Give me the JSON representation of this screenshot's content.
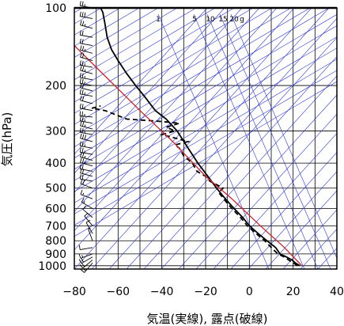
{
  "chart_data": {
    "type": "line",
    "title": "",
    "xlabel": "気温(実線), 露点(破線)",
    "ylabel": "気圧(hPa)",
    "x_unit": "°C",
    "y_unit": "hPa",
    "xlim": [
      -80,
      40
    ],
    "ylim": [
      1030,
      100
    ],
    "y_scale": "log",
    "x_ticks": [
      -80,
      -60,
      -40,
      -20,
      0,
      20,
      40
    ],
    "x_tick_labels": [
      "−80",
      "−60",
      "−40",
      "−20",
      "0",
      "20",
      "40"
    ],
    "y_ticks": [
      100,
      200,
      300,
      400,
      500,
      600,
      700,
      800,
      900,
      1000
    ],
    "y_tick_labels": [
      "100",
      "200",
      "300",
      "400",
      "500",
      "600",
      "700",
      "800",
      "900",
      "1000"
    ],
    "grid": true,
    "mixing_ratio_labels": [
      "1",
      "5",
      "10",
      "15",
      "20",
      "g"
    ],
    "colors": {
      "temperature": "#000000",
      "dewpoint": "#000000",
      "reference": "#d0202a",
      "helper_lines": "#2b35d8",
      "grid": "#000000"
    },
    "series": [
      {
        "key": "temperature",
        "style": "solid",
        "points": [
          [
            23,
            1000
          ],
          [
            21,
            975
          ],
          [
            19.5,
            950
          ],
          [
            17,
            925
          ],
          [
            14,
            900
          ],
          [
            12,
            850
          ],
          [
            8,
            800
          ],
          [
            4,
            750
          ],
          [
            0,
            700
          ],
          [
            -3,
            650
          ],
          [
            -7,
            600
          ],
          [
            -11,
            550
          ],
          [
            -15,
            500
          ],
          [
            -19,
            450
          ],
          [
            -23.5,
            400
          ],
          [
            -28,
            350
          ],
          [
            -33,
            300
          ],
          [
            -38,
            270
          ],
          [
            -43,
            250
          ],
          [
            -48,
            220
          ],
          [
            -52,
            200
          ],
          [
            -56,
            180
          ],
          [
            -60,
            160
          ],
          [
            -63,
            145
          ],
          [
            -65,
            130
          ],
          [
            -66,
            115
          ],
          [
            -67,
            104
          ],
          [
            -68,
            100
          ]
        ]
      },
      {
        "key": "dewpoint",
        "style": "dashed",
        "points": [
          [
            22,
            1000
          ],
          [
            20,
            975
          ],
          [
            18,
            950
          ],
          [
            16,
            925
          ],
          [
            13,
            900
          ],
          [
            10,
            850
          ],
          [
            7,
            800
          ],
          [
            3,
            750
          ],
          [
            -1,
            700
          ],
          [
            -4,
            650
          ],
          [
            -8,
            600
          ],
          [
            -11,
            560
          ],
          [
            -14,
            520
          ],
          [
            -12,
            500
          ],
          [
            -18,
            470
          ],
          [
            -20,
            450
          ],
          [
            -24,
            430
          ],
          [
            -26,
            400
          ],
          [
            -30,
            375
          ],
          [
            -32,
            350
          ],
          [
            -34,
            340
          ],
          [
            -28,
            330
          ],
          [
            -40,
            310
          ],
          [
            -34,
            300
          ],
          [
            -38,
            290
          ],
          [
            -32,
            280
          ],
          [
            -42,
            275
          ],
          [
            -56,
            270
          ],
          [
            -66,
            250
          ],
          [
            -72,
            245
          ],
          [
            -68,
            240
          ]
        ]
      },
      {
        "key": "reference",
        "style": "solid",
        "points": [
          [
            24,
            1000
          ],
          [
            16,
            850
          ],
          [
            5,
            700
          ],
          [
            -8,
            550
          ],
          [
            -20,
            450
          ],
          [
            -35,
            330
          ],
          [
            -50,
            250
          ],
          [
            -70,
            170
          ],
          [
            -80,
            140
          ]
        ]
      }
    ],
    "wind_barbs": [
      {
        "p": 100,
        "dir": 280,
        "spd": 25
      },
      {
        "p": 110,
        "dir": 280,
        "spd": 30
      },
      {
        "p": 120,
        "dir": 285,
        "spd": 25
      },
      {
        "p": 130,
        "dir": 280,
        "spd": 20
      },
      {
        "p": 140,
        "dir": 280,
        "spd": 20
      },
      {
        "p": 150,
        "dir": 285,
        "spd": 25
      },
      {
        "p": 160,
        "dir": 285,
        "spd": 20
      },
      {
        "p": 170,
        "dir": 280,
        "spd": 25
      },
      {
        "p": 180,
        "dir": 285,
        "spd": 25
      },
      {
        "p": 190,
        "dir": 280,
        "spd": 25
      },
      {
        "p": 200,
        "dir": 280,
        "spd": 25
      },
      {
        "p": 210,
        "dir": 285,
        "spd": 20
      },
      {
        "p": 220,
        "dir": 280,
        "spd": 25
      },
      {
        "p": 235,
        "dir": 285,
        "spd": 20
      },
      {
        "p": 250,
        "dir": 280,
        "spd": 25
      },
      {
        "p": 265,
        "dir": 275,
        "spd": 25
      },
      {
        "p": 280,
        "dir": 280,
        "spd": 25
      },
      {
        "p": 295,
        "dir": 285,
        "spd": 25
      },
      {
        "p": 310,
        "dir": 280,
        "spd": 25
      },
      {
        "p": 330,
        "dir": 285,
        "spd": 30
      },
      {
        "p": 350,
        "dir": 280,
        "spd": 25
      },
      {
        "p": 370,
        "dir": 280,
        "spd": 25
      },
      {
        "p": 390,
        "dir": 285,
        "spd": 25
      },
      {
        "p": 410,
        "dir": 285,
        "spd": 25
      },
      {
        "p": 430,
        "dir": 280,
        "spd": 20
      },
      {
        "p": 450,
        "dir": 285,
        "spd": 20
      },
      {
        "p": 470,
        "dir": 280,
        "spd": 20
      },
      {
        "p": 500,
        "dir": 290,
        "spd": 20
      },
      {
        "p": 550,
        "dir": 290,
        "spd": 15
      },
      {
        "p": 600,
        "dir": 300,
        "spd": 15
      },
      {
        "p": 650,
        "dir": 310,
        "spd": 10
      },
      {
        "p": 700,
        "dir": 320,
        "spd": 10
      },
      {
        "p": 750,
        "dir": 330,
        "spd": 10
      },
      {
        "p": 800,
        "dir": 340,
        "spd": 5
      },
      {
        "p": 850,
        "dir": 260,
        "spd": 10
      },
      {
        "p": 900,
        "dir": 250,
        "spd": 15
      },
      {
        "p": 925,
        "dir": 240,
        "spd": 20
      },
      {
        "p": 950,
        "dir": 230,
        "spd": 20
      },
      {
        "p": 975,
        "dir": 220,
        "spd": 15
      }
    ]
  }
}
